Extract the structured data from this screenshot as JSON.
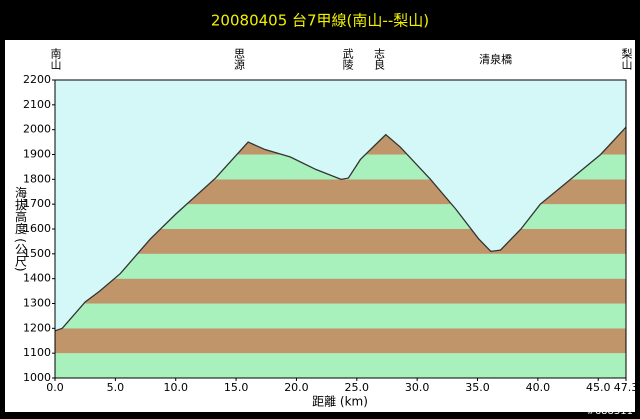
{
  "chart_data": {
    "type": "area",
    "title": "20080405  台7甲線(南山--梨山)",
    "x_label": "距離 (km)",
    "y_label": "海拔高度 (公尺)",
    "x": [
      0,
      0.6,
      2.5,
      3.7,
      5.4,
      7.9,
      10,
      13.3,
      16.0,
      17.4,
      19.5,
      21.6,
      23.7,
      24.3,
      25.3,
      27.4,
      28.6,
      31.1,
      33.2,
      35.1,
      36.1,
      36.9,
      38.6,
      40.2,
      42.7,
      45.2,
      47.3
    ],
    "values": [
      1190,
      1200,
      1306,
      1350,
      1420,
      1560,
      1660,
      1805,
      1950,
      1920,
      1890,
      1840,
      1800,
      1805,
      1880,
      1980,
      1930,
      1800,
      1680,
      1560,
      1510,
      1515,
      1600,
      1700,
      1800,
      1900,
      2010
    ],
    "line_color": "#333333",
    "band_colors": [
      "#a8f0bc",
      "#c0956a"
    ],
    "background_color": "#d4f8f8",
    "xlim": [
      0,
      47.3
    ],
    "ylim": [
      1000,
      2200
    ],
    "xticks": [
      {
        "value": 0,
        "label": "0.0"
      },
      {
        "value": 5,
        "label": "5.0"
      },
      {
        "value": 10,
        "label": "10.0"
      },
      {
        "value": 15,
        "label": "15.0"
      },
      {
        "value": 20,
        "label": "20.0"
      },
      {
        "value": 25,
        "label": "25.0"
      },
      {
        "value": 30,
        "label": "30.0"
      },
      {
        "value": 35,
        "label": "35.0"
      },
      {
        "value": 40,
        "label": "40.0"
      },
      {
        "value": 45,
        "label": "45.0"
      },
      {
        "value": 47.3,
        "label": "47.3"
      }
    ],
    "yticks": [
      1000,
      1100,
      1200,
      1300,
      1400,
      1500,
      1600,
      1700,
      1800,
      1900,
      2000,
      2100,
      2200
    ],
    "landmarks": [
      {
        "label": "南山",
        "x": 0,
        "vertical": true
      },
      {
        "label": "思源",
        "x": 15.2,
        "vertical": true
      },
      {
        "label": "武陵",
        "x": 24.2,
        "vertical": true
      },
      {
        "label": "志良",
        "x": 26.8,
        "vertical": true
      },
      {
        "label": "清泉橋",
        "x": 36.5,
        "vertical": false
      },
      {
        "label": "梨山",
        "x": 47.3,
        "vertical": true
      }
    ]
  },
  "watermark": "#688311"
}
